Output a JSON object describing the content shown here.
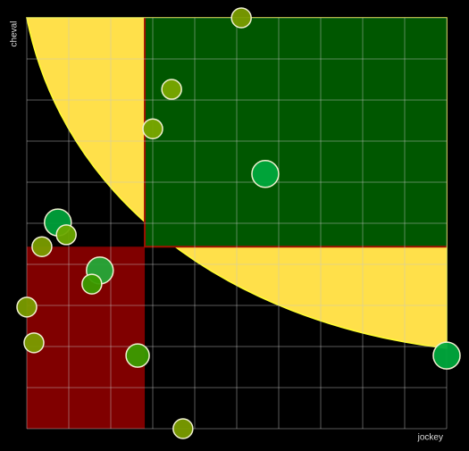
{
  "chart_data": {
    "type": "scatter",
    "xlabel": "jockey",
    "ylabel": "cheval",
    "x": [
      51.1,
      34.5,
      30.0,
      56.8,
      7.4,
      9.4,
      3.6,
      17.4,
      15.5,
      0.0,
      1.7,
      26.4,
      37.2,
      100.0
    ],
    "y": [
      100.0,
      82.6,
      73.0,
      62.0,
      50.2,
      47.2,
      44.3,
      38.5,
      35.2,
      29.6,
      20.9,
      17.8,
      0.0,
      17.8
    ],
    "sizes": [
      11,
      11,
      11,
      15,
      15,
      11,
      11,
      15,
      11,
      11,
      11,
      13,
      11,
      15
    ],
    "colors": [
      "#7a9c00",
      "#7aa800",
      "#7aa800",
      "#00a83c",
      "#00a03a",
      "#6aa800",
      "#7a9c00",
      "#24a838",
      "#3a9c00",
      "#7a9c00",
      "#7a9c00",
      "#3a9c00",
      "#7a9c00",
      "#00a83c"
    ],
    "xlim": [
      0,
      100
    ],
    "ylim": [
      0,
      100
    ],
    "xticks": [
      0,
      10,
      20,
      30,
      40,
      50,
      60,
      70,
      80,
      90,
      100
    ],
    "yticks": [
      0,
      10,
      20,
      30,
      40,
      50,
      60,
      70,
      80,
      90,
      100
    ],
    "grid": true,
    "regions": [
      {
        "xlim": [
          28.1,
          100
        ],
        "ylim": [
          44.3,
          100
        ],
        "color": "#005700"
      },
      {
        "xlim": [
          0,
          28.1
        ],
        "ylim": [
          0,
          44.3
        ],
        "color": "#800000"
      }
    ]
  }
}
